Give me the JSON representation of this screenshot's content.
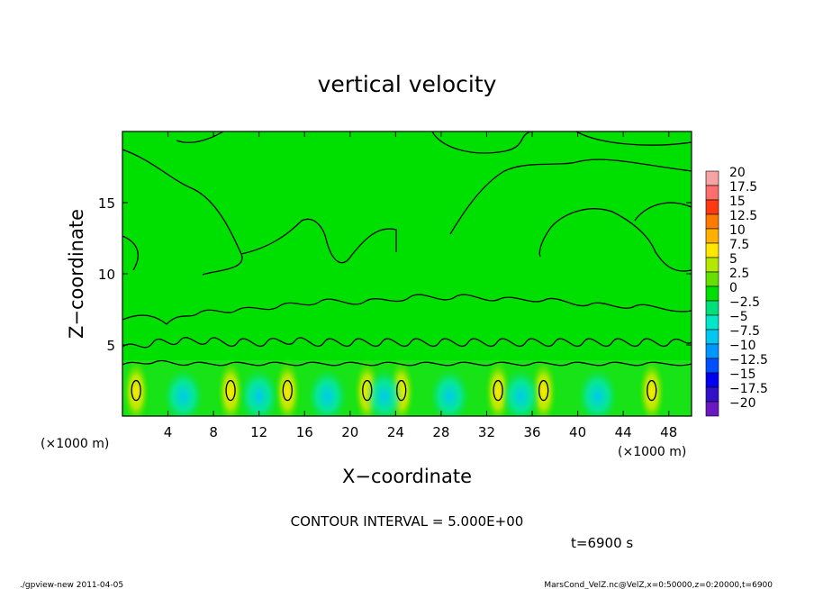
{
  "chart_data": {
    "type": "heatmap",
    "title": "vertical velocity",
    "xlabel": "X−coordinate",
    "ylabel": "Z−coordinate",
    "x_unit_left": "(×1000 m)",
    "x_unit_right": "(×1000 m)",
    "xlim": [
      0,
      50
    ],
    "ylim": [
      0,
      20
    ],
    "x_ticks": [
      4,
      8,
      12,
      16,
      20,
      24,
      28,
      32,
      36,
      40,
      44,
      48
    ],
    "y_ticks": [
      5,
      10,
      15
    ],
    "colorbar": {
      "levels": [
        20,
        17.5,
        15,
        12.5,
        10,
        7.5,
        5,
        2.5,
        0,
        -2.5,
        -5,
        -7.5,
        -10,
        -12.5,
        -15,
        -17.5,
        -20
      ],
      "labels": [
        "20",
        "17.5",
        "15",
        "12.5",
        "10",
        "7.5",
        "5",
        "2.5",
        "0",
        "−2.5",
        "−5",
        "−7.5",
        "−10",
        "−12.5",
        "−15",
        "−17.5",
        "−20"
      ],
      "colors": [
        "#f5a3a3",
        "#ff6e6e",
        "#ff3a10",
        "#ff7a00",
        "#ffb000",
        "#ffe800",
        "#b4e800",
        "#66e000",
        "#00e000",
        "#00e07a",
        "#00e8c8",
        "#00c8f0",
        "#0096ff",
        "#0050ff",
        "#0000f0",
        "#3010c8",
        "#6a18c0"
      ]
    },
    "updraft_columns_x": [
      1.2,
      9.5,
      14.5,
      21.5,
      24.5,
      33,
      37,
      46.5
    ]
  },
  "annotations": {
    "contour_interval": "CONTOUR INTERVAL = 5.000E+00",
    "time": "t=6900 s",
    "footer_left": "./gpview-new  2011-04-05",
    "footer_right": "MarsCond_VelZ.nc@VelZ,x=0:50000,z=0:20000,t=6900"
  }
}
